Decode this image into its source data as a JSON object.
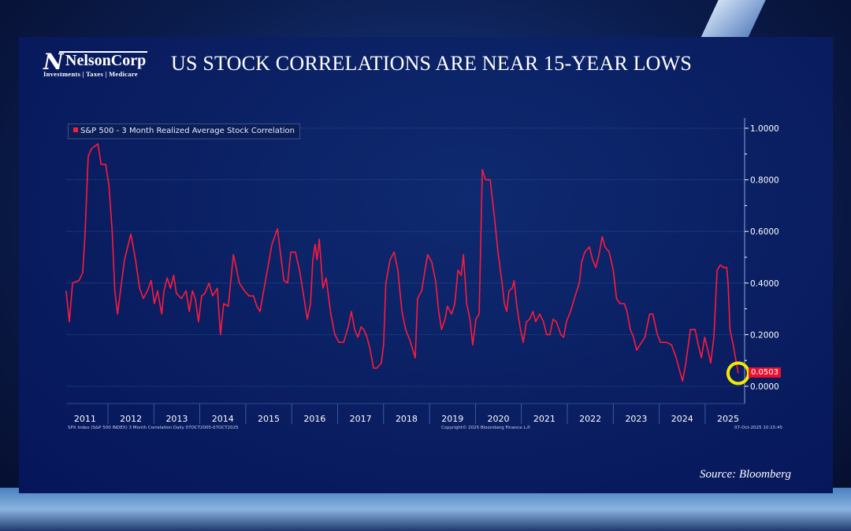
{
  "brand": {
    "name": "NelsonCorp",
    "mark": "N",
    "tagline": "Investments | Taxes | Medicare"
  },
  "title": "US STOCK CORRELATIONS ARE NEAR 15-YEAR LOWS",
  "footer": {
    "left": "SPX Index (S&P 500 INDEX) 3 Month Correlation Daily 07OCT2005-07OCT2025",
    "center": "Copyright© 2025 Bloomberg Finance L.P.",
    "right": "07-Oct-2025 10:15:45"
  },
  "source": "Source: Bloomberg",
  "colors": {
    "line": "#ff1a3c",
    "highlight": "#f5e800",
    "axis_text": "#ffffff"
  },
  "chart_data": {
    "type": "line",
    "title": "US STOCK CORRELATIONS ARE NEAR 15-YEAR LOWS",
    "xlabel": "",
    "ylabel": "",
    "xlim": [
      2011.0,
      2025.8
    ],
    "ylim": [
      -0.08,
      1.04
    ],
    "y_ticks": [
      0.0,
      0.2,
      0.4,
      0.6,
      0.8,
      1.0
    ],
    "y_tick_labels": [
      "0.0000",
      "0.2000",
      "0.4000",
      "0.6000",
      "0.8000",
      "1.0000"
    ],
    "x_tick_labels": [
      "2011",
      "2012",
      "2013",
      "2014",
      "2015",
      "2016",
      "2017",
      "2018",
      "2019",
      "2020",
      "2021",
      "2022",
      "2023",
      "2024",
      "2025"
    ],
    "grid": true,
    "y_axis_side": "right",
    "legend": {
      "position": "top-left",
      "entries": [
        "S&P 500 - 3 Month Realized Average Stock Correlation"
      ]
    },
    "last_value": 0.0503,
    "last_value_label": "0.0503",
    "series": [
      {
        "name": "S&P 500 - 3 Month Realized Average Stock Correlation",
        "x": [
          2011.09,
          2011.16,
          2011.23,
          2011.37,
          2011.45,
          2011.5,
          2011.57,
          2011.64,
          2011.78,
          2011.85,
          2011.95,
          2012.02,
          2012.09,
          2012.15,
          2012.21,
          2012.28,
          2012.36,
          2012.5,
          2012.6,
          2012.69,
          2012.77,
          2012.86,
          2012.94,
          2013.01,
          2013.08,
          2013.17,
          2013.22,
          2013.29,
          2013.36,
          2013.43,
          2013.49,
          2013.6,
          2013.7,
          2013.77,
          2013.84,
          2013.9,
          2013.97,
          2014.04,
          2014.11,
          2014.2,
          2014.28,
          2014.38,
          2014.45,
          2014.52,
          2014.62,
          2014.73,
          2014.79,
          2014.86,
          2014.97,
          2015.07,
          2015.17,
          2015.24,
          2015.31,
          2015.36,
          2015.57,
          2015.69,
          2015.76,
          2015.83,
          2015.91,
          2015.98,
          2016.08,
          2016.17,
          2016.27,
          2016.34,
          2016.41,
          2016.46,
          2016.51,
          2016.55,
          2016.6,
          2016.68,
          2016.75,
          2016.85,
          2016.94,
          2017.03,
          2017.13,
          2017.23,
          2017.3,
          2017.37,
          2017.44,
          2017.51,
          2017.57,
          2017.64,
          2017.71,
          2017.78,
          2017.85,
          2017.95,
          2018.0,
          2018.05,
          2018.14,
          2018.23,
          2018.31,
          2018.4,
          2018.48,
          2018.57,
          2018.69,
          2018.74,
          2018.83,
          2018.91,
          2018.96,
          2019.05,
          2019.13,
          2019.2,
          2019.26,
          2019.34,
          2019.39,
          2019.48,
          2019.55,
          2019.62,
          2019.69,
          2019.74,
          2019.81,
          2019.88,
          2019.94,
          2020.01,
          2020.08,
          2020.15,
          2020.22,
          2020.32,
          2020.41,
          2020.49,
          2020.58,
          2020.63,
          2020.68,
          2020.73,
          2020.8,
          2020.84,
          2020.9,
          2020.97,
          2021.04,
          2021.11,
          2021.18,
          2021.25,
          2021.31,
          2021.4,
          2021.48,
          2021.55,
          2021.62,
          2021.69,
          2021.76,
          2021.86,
          2021.92,
          2021.98,
          2022.07,
          2022.17,
          2022.26,
          2022.31,
          2022.38,
          2022.48,
          2022.55,
          2022.62,
          2022.69,
          2022.76,
          2022.82,
          2022.91,
          2023.0,
          2023.07,
          2023.15,
          2023.24,
          2023.3,
          2023.37,
          2023.44,
          2023.51,
          2023.58,
          2023.69,
          2023.79,
          2023.86,
          2023.96,
          2024.03,
          2024.1,
          2024.16,
          2024.27,
          2024.37,
          2024.46,
          2024.51,
          2024.58,
          2024.68,
          2024.78,
          2024.85,
          2024.92,
          2024.99,
          2025.06,
          2025.12,
          2025.19,
          2025.26,
          2025.33,
          2025.4,
          2025.47,
          2025.5,
          2025.54,
          2025.61,
          2025.66,
          2025.72
        ],
        "y": [
          0.37,
          0.25,
          0.4,
          0.41,
          0.44,
          0.58,
          0.89,
          0.92,
          0.94,
          0.86,
          0.86,
          0.78,
          0.61,
          0.37,
          0.28,
          0.38,
          0.49,
          0.59,
          0.49,
          0.38,
          0.34,
          0.37,
          0.41,
          0.32,
          0.37,
          0.28,
          0.37,
          0.42,
          0.38,
          0.43,
          0.36,
          0.34,
          0.37,
          0.29,
          0.37,
          0.34,
          0.25,
          0.35,
          0.36,
          0.4,
          0.35,
          0.38,
          0.2,
          0.32,
          0.31,
          0.51,
          0.46,
          0.4,
          0.37,
          0.35,
          0.35,
          0.31,
          0.29,
          0.34,
          0.55,
          0.61,
          0.51,
          0.41,
          0.4,
          0.52,
          0.52,
          0.45,
          0.34,
          0.26,
          0.32,
          0.49,
          0.55,
          0.49,
          0.57,
          0.38,
          0.42,
          0.28,
          0.2,
          0.17,
          0.17,
          0.23,
          0.29,
          0.22,
          0.19,
          0.23,
          0.22,
          0.19,
          0.14,
          0.07,
          0.07,
          0.09,
          0.16,
          0.4,
          0.49,
          0.52,
          0.45,
          0.29,
          0.22,
          0.18,
          0.11,
          0.34,
          0.37,
          0.46,
          0.51,
          0.48,
          0.41,
          0.29,
          0.22,
          0.26,
          0.31,
          0.28,
          0.32,
          0.45,
          0.43,
          0.51,
          0.32,
          0.26,
          0.16,
          0.26,
          0.28,
          0.84,
          0.8,
          0.8,
          0.66,
          0.52,
          0.4,
          0.32,
          0.29,
          0.37,
          0.38,
          0.41,
          0.31,
          0.23,
          0.17,
          0.25,
          0.26,
          0.29,
          0.25,
          0.28,
          0.25,
          0.2,
          0.2,
          0.26,
          0.25,
          0.2,
          0.19,
          0.25,
          0.29,
          0.35,
          0.4,
          0.48,
          0.52,
          0.54,
          0.49,
          0.46,
          0.51,
          0.58,
          0.54,
          0.52,
          0.45,
          0.34,
          0.32,
          0.32,
          0.29,
          0.22,
          0.19,
          0.14,
          0.16,
          0.19,
          0.28,
          0.28,
          0.2,
          0.17,
          0.17,
          0.17,
          0.16,
          0.11,
          0.05,
          0.02,
          0.09,
          0.22,
          0.22,
          0.16,
          0.11,
          0.19,
          0.14,
          0.09,
          0.19,
          0.45,
          0.47,
          0.46,
          0.46,
          0.4,
          0.22,
          0.16,
          0.11,
          0.0503
        ]
      }
    ]
  }
}
